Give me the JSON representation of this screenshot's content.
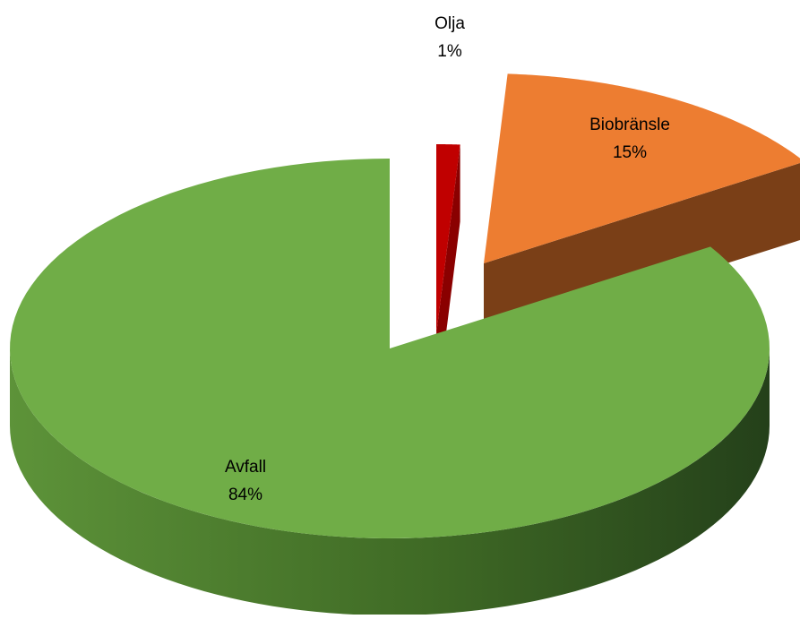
{
  "chart_data": {
    "type": "pie",
    "title": "",
    "style": "3d-exploded",
    "slices": [
      {
        "name": "Olja",
        "value": 1,
        "label": "1%",
        "color": "#c00000",
        "side_color": "#7a0000"
      },
      {
        "name": "Biobränsle",
        "value": 15,
        "label": "15%",
        "color": "#ed7d31",
        "side_color": "#7a3f17"
      },
      {
        "name": "Avfall",
        "value": 84,
        "label": "84%",
        "color": "#70ad47",
        "side_color": "#3e6828"
      }
    ],
    "legend": "none"
  }
}
